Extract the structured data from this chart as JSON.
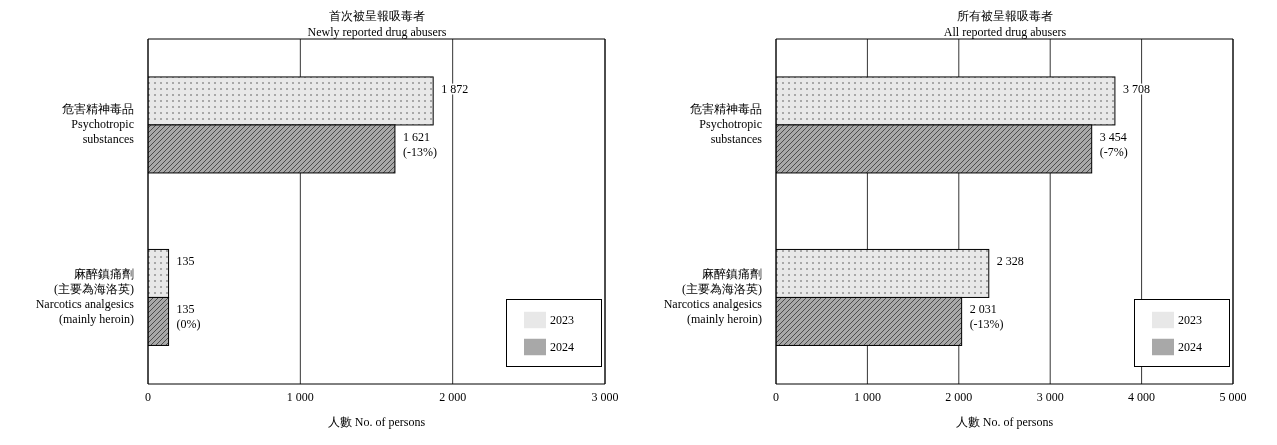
{
  "chart_data": [
    {
      "type": "bar",
      "orientation": "horizontal",
      "title": "首次被呈報吸毒者",
      "subtitle": "Newly reported drug abusers",
      "xlabel": "人數 No. of persons",
      "categories": [
        "危害精神毒品\nPsychotropic\nsubstances",
        "麻醉鎮痛劑\n(主要為海洛英)\nNarcotics analgesics\n(mainly heroin)"
      ],
      "series": [
        {
          "name": "2023",
          "color": "#e8e8e8",
          "values": [
            1872,
            135
          ],
          "value_labels": [
            "1 872",
            "135"
          ]
        },
        {
          "name": "2024",
          "color": "#a8a8a8",
          "values": [
            1621,
            135
          ],
          "value_labels": [
            "1 621\n(-13%)",
            "135\n(0%)"
          ]
        }
      ],
      "xlim": [
        0,
        3000
      ],
      "xticks": [
        0,
        {
          "value": 1000,
          "label": "1 000"
        },
        {
          "value": 2000,
          "label": "2 000"
        },
        {
          "value": 3000,
          "label": "3 000"
        }
      ],
      "grid": "x",
      "legend": "bottom right"
    },
    {
      "type": "bar",
      "orientation": "horizontal",
      "title": "所有被呈報吸毒者",
      "subtitle": "All reported drug abusers",
      "xlabel": "人數 No. of persons",
      "categories": [
        "危害精神毒品\nPsychotropic\nsubstances",
        "麻醉鎮痛劑\n(主要為海洛英)\nNarcotics analgesics\n(mainly heroin)"
      ],
      "series": [
        {
          "name": "2023",
          "color": "#e8e8e8",
          "values": [
            3708,
            2328
          ],
          "value_labels": [
            "3 708",
            "2 328"
          ]
        },
        {
          "name": "2024",
          "color": "#a8a8a8",
          "values": [
            3454,
            2031
          ],
          "value_labels": [
            "3 454\n(-7%)",
            "2 031\n(-13%)"
          ]
        }
      ],
      "xlim": [
        0,
        5000
      ],
      "xticks": [
        0,
        {
          "value": 1000,
          "label": "1 000"
        },
        {
          "value": 2000,
          "label": "2 000"
        },
        {
          "value": 3000,
          "label": "3 000"
        },
        {
          "value": 4000,
          "label": "4 000"
        },
        {
          "value": 5000,
          "label": "5 000"
        }
      ],
      "grid": "x",
      "legend": "bottom right"
    }
  ]
}
